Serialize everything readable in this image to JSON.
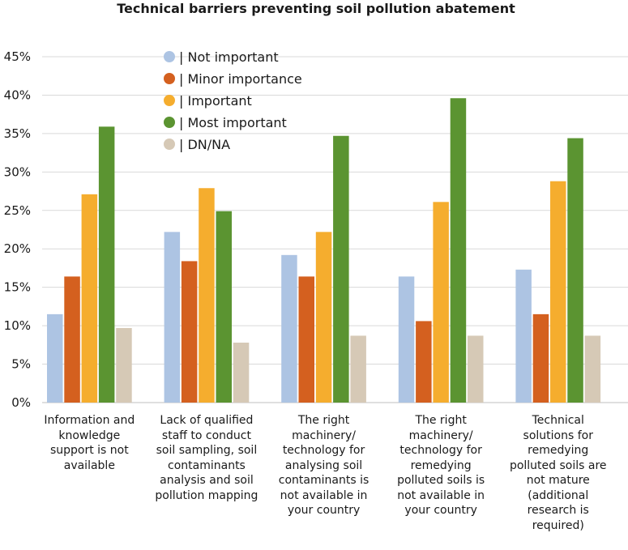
{
  "chart_data": {
    "type": "bar",
    "title": "Technical barriers preventing soil pollution abatement",
    "xlabel": "",
    "ylabel": "",
    "ylim": [
      0,
      45
    ],
    "yticks": [
      "0%",
      "5%",
      "10%",
      "15%",
      "20%",
      "25%",
      "30%",
      "35%",
      "40%",
      "45%"
    ],
    "grid": true,
    "legend_position": "top-left",
    "categories": [
      "Information and knowledge support is not available",
      "Lack of qualified staff to conduct soil sampling, soil contaminants analysis and soil pollution mapping",
      "The right machinery/ technology for analysing soil contaminants is not available in your country",
      "The right machinery/ technology for remedying polluted soils is not available in your country",
      "Technical solutions for remedying polluted soils are not mature (additional research is required)"
    ],
    "series": [
      {
        "name": "| Not important",
        "color": "#adc4e3",
        "values": [
          11.5,
          22.2,
          19.2,
          16.4,
          17.3
        ]
      },
      {
        "name": "| Minor importance",
        "color": "#d4601f",
        "values": [
          16.4,
          18.4,
          16.4,
          10.6,
          11.5
        ]
      },
      {
        "name": "| Important",
        "color": "#f5ad2e",
        "values": [
          27.1,
          27.9,
          22.2,
          26.1,
          28.8
        ]
      },
      {
        "name": "| Most important",
        "color": "#5b9431",
        "values": [
          35.9,
          24.9,
          34.7,
          39.6,
          34.4
        ]
      },
      {
        "name": "| DN/NA",
        "color": "#d6c9b6",
        "values": [
          9.7,
          7.8,
          8.7,
          8.7,
          8.7
        ]
      }
    ]
  }
}
